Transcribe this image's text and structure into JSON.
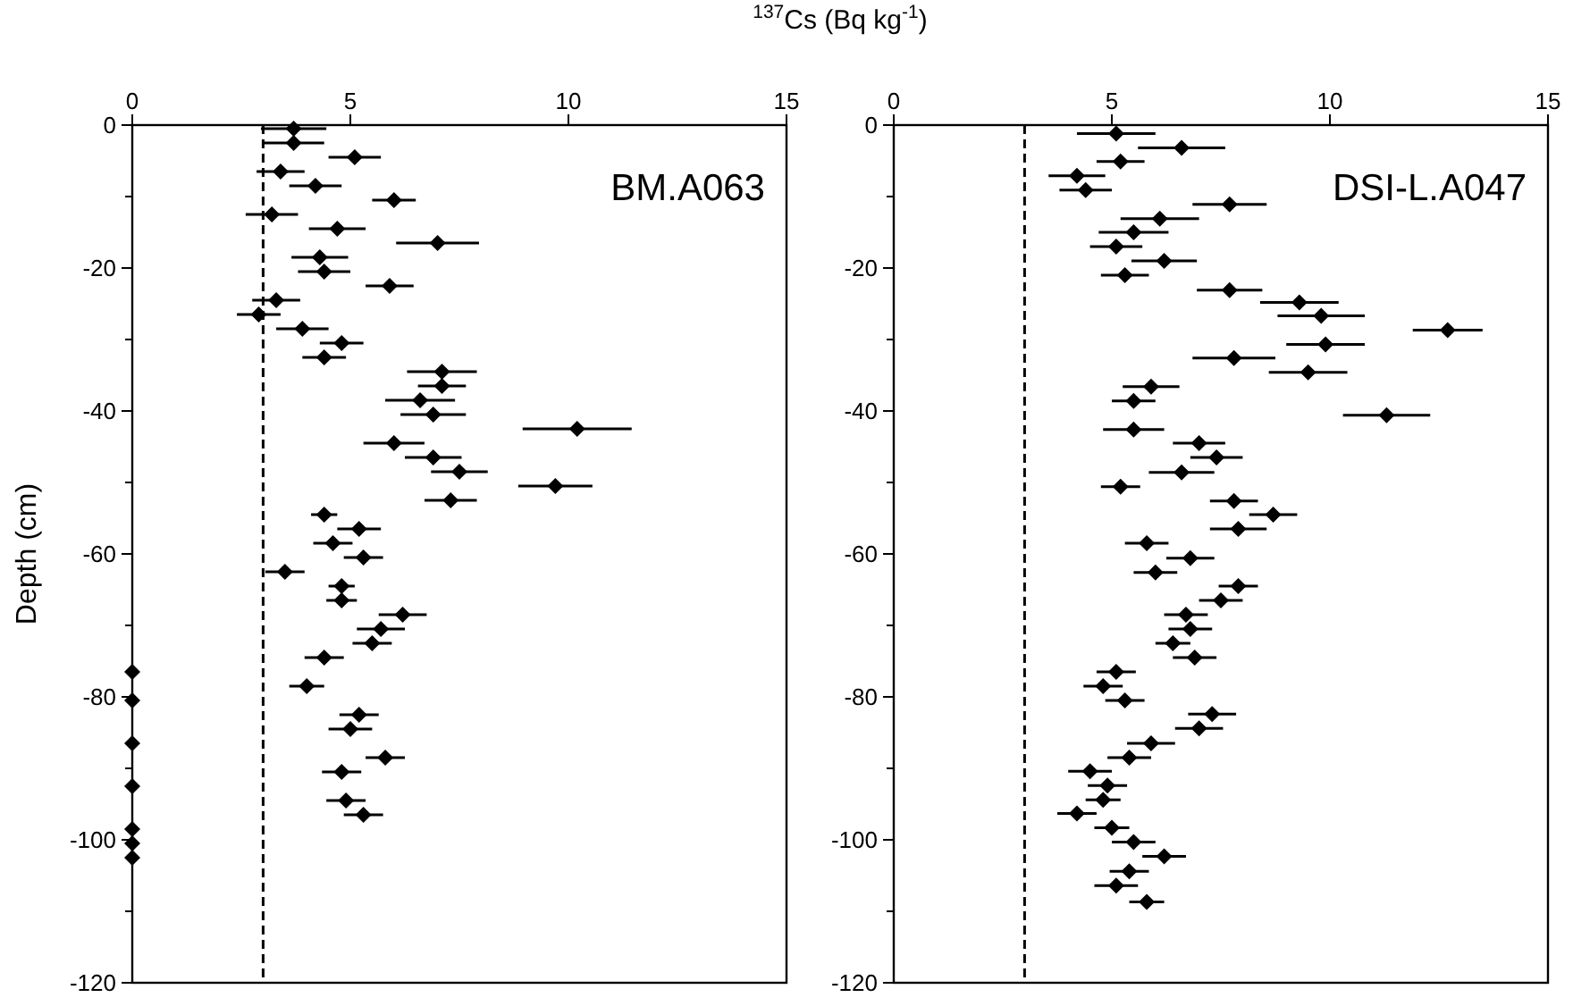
{
  "chart_data": [
    {
      "type": "scatter",
      "xlabel": "$^{137}$Cs (Bq kg$^{-1}$)",
      "ylabel": "Depth (cm)",
      "color": "#000000",
      "marker": "diamond",
      "x": [
        3.7,
        3.7,
        5.1,
        3.4,
        4.2,
        6.0,
        3.2,
        4.7,
        7.0,
        4.3,
        4.4,
        5.9,
        3.3,
        2.9,
        3.9,
        4.8,
        4.4,
        7.1,
        7.1,
        6.6,
        6.9,
        10.2,
        6.0,
        6.9,
        7.5,
        9.7,
        7.3,
        4.4,
        5.2,
        4.6,
        5.3,
        3.5,
        4.8,
        4.8,
        6.2,
        5.7,
        5.5,
        4.4,
        0,
        4.0,
        0,
        5.2,
        5.0,
        0,
        5.8,
        4.8,
        0,
        4.9,
        5.3,
        0,
        0,
        0
      ],
      "values": [
        -0.5,
        -2.5,
        -4.5,
        -6.5,
        -8.5,
        -10.5,
        -12.5,
        -14.5,
        -16.5,
        -18.5,
        -20.5,
        -22.5,
        -24.5,
        -26.5,
        -28.5,
        -30.5,
        -32.5,
        -34.5,
        -36.5,
        -38.5,
        -40.5,
        -42.5,
        -44.5,
        -46.5,
        -48.5,
        -50.5,
        -52.5,
        -54.5,
        -56.5,
        -58.5,
        -60.5,
        -62.5,
        -64.5,
        -66.5,
        -68.5,
        -70.5,
        -72.5,
        -74.5,
        -76.5,
        -78.5,
        -80.5,
        -82.5,
        -84.5,
        -86.5,
        -88.5,
        -90.5,
        -92.5,
        -94.5,
        -96.5,
        -98.5,
        -100.5,
        -102.5
      ],
      "xerrors": [
        0.75,
        0.7,
        0.6,
        0.55,
        0.6,
        0.5,
        0.6,
        0.65,
        0.95,
        0.65,
        0.6,
        0.55,
        0.55,
        0.5,
        0.6,
        0.5,
        0.5,
        0.8,
        0.55,
        0.8,
        0.75,
        1.25,
        0.7,
        0.65,
        0.65,
        0.85,
        0.6,
        0.3,
        0.5,
        0.45,
        0.45,
        0.45,
        0.3,
        0.35,
        0.55,
        0.55,
        0.45,
        0.45,
        null,
        0.4,
        null,
        0.45,
        0.5,
        null,
        0.45,
        0.45,
        null,
        0.45,
        0.45,
        null,
        null,
        null
      ],
      "xlim": [
        0,
        15
      ],
      "xticks": [
        0,
        5,
        10,
        15
      ],
      "ylim": [
        -120,
        0
      ],
      "yticks": [
        0,
        {
          "value": -10,
          "label": null
        },
        -20,
        {
          "value": -30,
          "label": null
        },
        -40,
        {
          "value": -50,
          "label": null
        },
        -60,
        {
          "value": -70,
          "label": null
        },
        -80,
        {
          "value": -90,
          "label": null
        },
        -100,
        {
          "value": -110,
          "label": null
        },
        -120
      ],
      "ref_lines": [
        {
          "axis": "x",
          "value": 3,
          "line_style": "dashed",
          "color": "#000000"
        }
      ],
      "annotations": [
        "BM.A063"
      ]
    },
    {
      "type": "scatter",
      "color": "#000000",
      "marker": "diamond",
      "x": [
        5.1,
        6.6,
        5.2,
        4.2,
        4.4,
        7.7,
        6.1,
        5.5,
        5.1,
        6.2,
        5.3,
        7.7,
        9.3,
        9.8,
        12.7,
        9.9,
        7.8,
        9.5,
        5.9,
        5.5,
        11.3,
        5.5,
        7.0,
        7.4,
        6.6,
        5.2,
        7.8,
        8.7,
        7.9,
        5.8,
        6.8,
        6.0,
        7.9,
        7.5,
        6.7,
        6.8,
        6.4,
        6.9,
        5.1,
        4.8,
        5.3,
        7.3,
        7.0,
        5.9,
        5.4,
        4.5,
        4.9,
        4.8,
        4.2,
        5.0,
        5.5,
        6.2,
        5.4,
        5.1,
        5.8
      ],
      "values": [
        -1.2,
        -3.2,
        -5.1,
        -7.1,
        -9.1,
        -11.1,
        -13.1,
        -15.0,
        -17.0,
        -19.0,
        -21.0,
        -23.1,
        -24.8,
        -26.7,
        -28.7,
        -30.7,
        -32.6,
        -34.6,
        -36.6,
        -38.6,
        -40.6,
        -42.6,
        -44.5,
        -46.5,
        -48.6,
        -50.6,
        -52.6,
        -54.5,
        -56.5,
        -58.5,
        -60.6,
        -62.6,
        -64.5,
        -66.5,
        -68.5,
        -70.5,
        -72.5,
        -74.5,
        -76.5,
        -78.5,
        -80.5,
        -82.4,
        -84.4,
        -86.5,
        -88.5,
        -90.4,
        -92.4,
        -94.4,
        -96.3,
        -98.3,
        -100.3,
        -102.3,
        -104.4,
        -106.4,
        -108.7
      ],
      "xerrors": [
        0.9,
        1.0,
        0.55,
        0.65,
        0.6,
        0.85,
        0.9,
        0.8,
        0.6,
        0.75,
        0.55,
        0.75,
        0.9,
        1.0,
        0.8,
        0.9,
        0.95,
        0.9,
        0.65,
        0.5,
        1.0,
        0.7,
        0.6,
        0.6,
        0.75,
        0.45,
        0.55,
        0.55,
        0.65,
        0.5,
        0.55,
        0.5,
        0.45,
        0.5,
        0.5,
        0.5,
        0.4,
        0.5,
        0.45,
        0.45,
        0.45,
        0.55,
        0.55,
        0.55,
        0.5,
        0.5,
        0.45,
        0.4,
        0.45,
        0.4,
        0.5,
        0.5,
        0.45,
        0.5,
        0.4
      ],
      "xlim": [
        0,
        15
      ],
      "xticks": [
        0,
        5,
        10,
        15
      ],
      "ylim": [
        -120,
        0
      ],
      "yticks": [
        0,
        {
          "value": -10,
          "label": null
        },
        -20,
        {
          "value": -30,
          "label": null
        },
        -40,
        {
          "value": -50,
          "label": null
        },
        -60,
        {
          "value": -70,
          "label": null
        },
        -80,
        {
          "value": -90,
          "label": null
        },
        -100,
        {
          "value": -110,
          "label": null
        },
        -120
      ],
      "ref_lines": [
        {
          "axis": "x",
          "value": 3,
          "line_style": "dashed",
          "color": "#000000"
        }
      ],
      "annotations": [
        "DSI-L.A047"
      ]
    }
  ]
}
